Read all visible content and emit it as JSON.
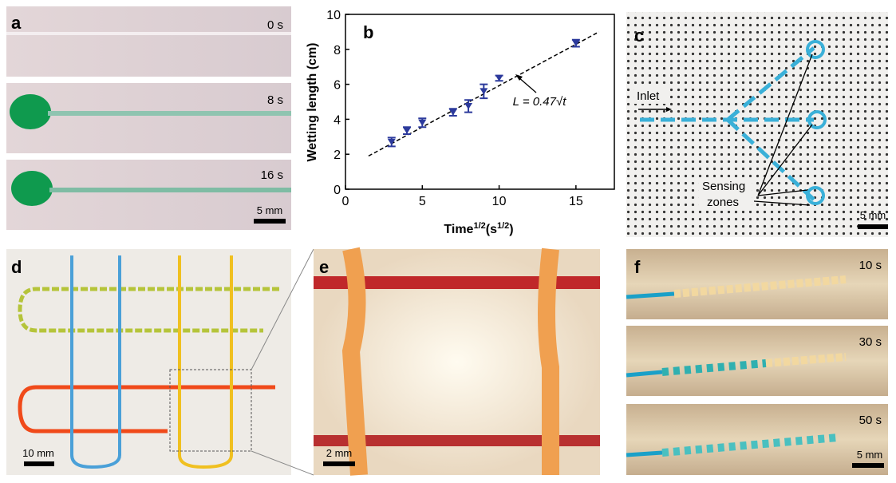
{
  "panels": {
    "a": {
      "label": "a",
      "times": [
        "0 s",
        "8 s",
        "16 s"
      ],
      "scale": "5 mm"
    },
    "c": {
      "label": "c",
      "inlet": "Inlet",
      "sensing": [
        "Sensing",
        "zones"
      ],
      "scale": "5 mm"
    },
    "d": {
      "label": "d",
      "scale": "10 mm"
    },
    "e": {
      "label": "e",
      "scale": "2 mm"
    },
    "f": {
      "label": "f",
      "times": [
        "10 s",
        "30 s",
        "50 s"
      ],
      "scale": "5 mm"
    }
  },
  "chart_data": {
    "type": "scatter",
    "label": "b",
    "x_label": {
      "text": "Time",
      "sup": "1/2",
      "unit": "(s",
      "unit_sup": "1/2",
      "end": ")"
    },
    "y_label": "Wetting length (cm)",
    "x": [
      3,
      4,
      5,
      7,
      8,
      9,
      10,
      15
    ],
    "y": [
      2.7,
      3.35,
      3.8,
      4.4,
      4.75,
      5.6,
      6.35,
      8.35
    ],
    "err": [
      0.25,
      0.2,
      0.25,
      0.2,
      0.35,
      0.4,
      0.15,
      0.2
    ],
    "color": "#2c3a9c",
    "fit_line": {
      "x": [
        1.5,
        16.5
      ],
      "y": [
        1.9,
        9.0
      ]
    },
    "annotation": "L = 0.47√t",
    "xlim": [
      0,
      17.5
    ],
    "xticks": [
      0,
      5,
      10,
      15
    ],
    "ylim": [
      0,
      10
    ],
    "yticks": [
      0,
      2,
      4,
      6,
      8,
      10
    ]
  }
}
